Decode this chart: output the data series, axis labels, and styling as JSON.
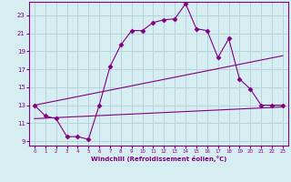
{
  "xlabel": "Windchill (Refroidissement éolien,°C)",
  "background_color": "#d6eef2",
  "grid_color": "#b8d4da",
  "line_color": "#800080",
  "xlim": [
    -0.5,
    23.5
  ],
  "ylim": [
    8.5,
    24.5
  ],
  "yticks": [
    9,
    11,
    13,
    15,
    17,
    19,
    21,
    23
  ],
  "xticks": [
    0,
    1,
    2,
    3,
    4,
    5,
    6,
    7,
    8,
    9,
    10,
    11,
    12,
    13,
    14,
    15,
    16,
    17,
    18,
    19,
    20,
    21,
    22,
    23
  ],
  "line1_x": [
    0,
    1,
    2,
    3,
    4,
    5,
    6,
    7,
    8,
    9,
    10,
    11,
    12,
    13,
    14,
    15,
    16,
    17,
    18,
    19,
    20,
    21,
    22,
    23
  ],
  "line1_y": [
    13.0,
    11.8,
    11.5,
    9.5,
    9.5,
    9.2,
    13.0,
    17.3,
    19.7,
    21.3,
    21.3,
    22.2,
    22.5,
    22.6,
    24.3,
    21.5,
    21.3,
    18.3,
    20.4,
    15.9,
    14.8,
    13.0,
    13.0,
    13.0
  ],
  "line2_x": [
    0,
    23
  ],
  "line2_y": [
    11.5,
    12.8
  ],
  "line3_x": [
    0,
    23
  ],
  "line3_y": [
    13.0,
    18.5
  ],
  "marker": "D",
  "marker_size": 2.5
}
